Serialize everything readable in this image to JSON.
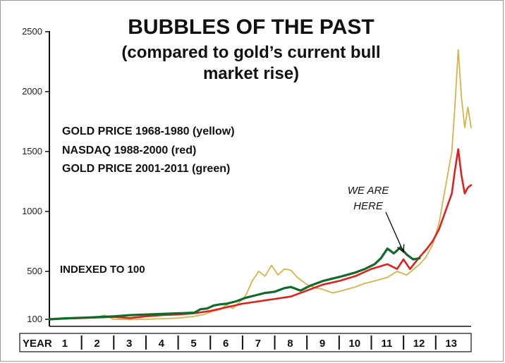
{
  "chart_data": {
    "type": "line",
    "title": "BUBBLES OF THE PAST",
    "subtitle_line1": "(compared to gold’s current bull",
    "subtitle_line2": "market rise)",
    "legend": [
      "GOLD PRICE 1968-1980 (yellow)",
      "NASDAQ 1988-2000 (red)",
      "GOLD PRICE 2001-2011 (green)"
    ],
    "note": "INDEXED TO 100",
    "annotation_line1": "WE ARE",
    "annotation_line2": "HERE",
    "annotation_x": 11.5,
    "annotation_y": 660,
    "xlabel": "YEAR",
    "x_ticks": [
      "1",
      "2",
      "3",
      "4",
      "5",
      "6",
      "7",
      "8",
      "9",
      "10",
      "11",
      "12",
      "13"
    ],
    "y_ticks": [
      "100",
      "500",
      "1000",
      "1500",
      "2000",
      "2500"
    ],
    "y_tick_values": [
      100,
      500,
      1000,
      1500,
      2000,
      2500
    ],
    "xlim": [
      0.5,
      13.6
    ],
    "ylim": [
      100,
      2500
    ],
    "grid": false,
    "colors": {
      "yellow": "#d4b44a",
      "red": "#e0201b",
      "green": "#0f6b2a"
    },
    "series": [
      {
        "color": "yellow",
        "x": [
          0.5,
          1.0,
          1.5,
          2.0,
          2.2,
          2.5,
          3.0,
          3.5,
          4.0,
          4.5,
          5.0,
          5.3,
          5.6,
          5.8,
          6.0,
          6.2,
          6.4,
          6.6,
          6.8,
          7.0,
          7.2,
          7.4,
          7.6,
          7.8,
          8.0,
          8.2,
          8.5,
          8.8,
          9.0,
          9.3,
          9.6,
          10.0,
          10.3,
          10.6,
          11.0,
          11.3,
          11.6,
          12.0,
          12.2,
          12.4,
          12.6,
          12.8,
          13.0,
          13.1,
          13.2,
          13.3,
          13.4,
          13.5,
          13.6
        ],
        "y": [
          100,
          110,
          115,
          120,
          135,
          100,
          98,
          100,
          105,
          110,
          125,
          140,
          170,
          180,
          220,
          190,
          240,
          300,
          420,
          500,
          460,
          550,
          470,
          520,
          510,
          450,
          390,
          360,
          350,
          320,
          340,
          370,
          400,
          420,
          450,
          500,
          470,
          560,
          620,
          720,
          900,
          1200,
          1500,
          1900,
          2350,
          1950,
          1700,
          1870,
          1700
        ]
      },
      {
        "color": "red",
        "x": [
          0.5,
          1.0,
          1.5,
          2.0,
          2.5,
          3.0,
          3.5,
          4.0,
          4.5,
          5.0,
          5.5,
          6.0,
          6.5,
          7.0,
          7.5,
          8.0,
          8.5,
          9.0,
          9.5,
          10.0,
          10.5,
          11.0,
          11.3,
          11.5,
          11.7,
          12.0,
          12.2,
          12.4,
          12.6,
          12.8,
          13.0,
          13.1,
          13.2,
          13.3,
          13.4,
          13.5,
          13.6
        ],
        "y": [
          100,
          105,
          110,
          115,
          120,
          110,
          125,
          135,
          140,
          150,
          170,
          200,
          230,
          250,
          270,
          290,
          340,
          390,
          420,
          460,
          520,
          560,
          520,
          600,
          520,
          620,
          680,
          750,
          850,
          1000,
          1150,
          1350,
          1520,
          1300,
          1150,
          1200,
          1220
        ]
      },
      {
        "color": "green",
        "x": [
          0.5,
          1.0,
          1.5,
          2.0,
          2.5,
          3.0,
          3.5,
          4.0,
          4.5,
          5.0,
          5.2,
          5.4,
          5.6,
          5.8,
          6.0,
          6.3,
          6.6,
          6.9,
          7.2,
          7.5,
          7.8,
          8.0,
          8.3,
          8.6,
          9.0,
          9.3,
          9.6,
          10.0,
          10.3,
          10.6,
          10.8,
          11.0,
          11.2,
          11.4,
          11.6,
          11.8,
          12.0
        ],
        "y": [
          100,
          108,
          113,
          118,
          125,
          135,
          140,
          145,
          150,
          155,
          185,
          190,
          215,
          225,
          230,
          250,
          280,
          300,
          320,
          330,
          360,
          370,
          340,
          380,
          420,
          440,
          460,
          490,
          520,
          560,
          610,
          690,
          650,
          700,
          640,
          600,
          610
        ]
      }
    ]
  }
}
